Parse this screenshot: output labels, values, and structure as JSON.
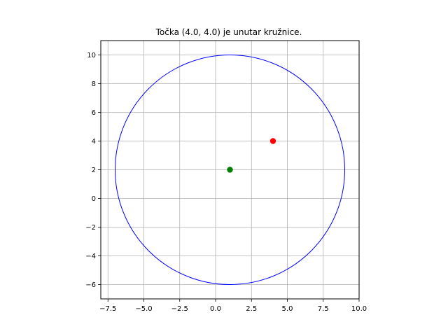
{
  "chart_data": {
    "type": "scatter",
    "title": "Točka (4.0, 4.0) je unutar kružnice.",
    "xlabel": "",
    "ylabel": "",
    "xlim": [
      -8.0,
      10.0
    ],
    "ylim": [
      -7.0,
      11.0
    ],
    "aspect": "equal",
    "grid": true,
    "x_ticks": [
      -7.5,
      -5.0,
      -2.5,
      0.0,
      2.5,
      5.0,
      7.5,
      10.0
    ],
    "x_tick_labels": [
      "−7.5",
      "−5.0",
      "−2.5",
      "0.0",
      "2.5",
      "5.0",
      "7.5",
      "10.0"
    ],
    "y_ticks": [
      -6,
      -4,
      -2,
      0,
      2,
      4,
      6,
      8,
      10
    ],
    "y_tick_labels": [
      "−6",
      "−4",
      "−2",
      "0",
      "2",
      "4",
      "6",
      "8",
      "10"
    ],
    "circle": {
      "center": [
        1.0,
        2.0
      ],
      "radius": 8.0,
      "color": "#0000ff"
    },
    "points": [
      {
        "x": 1.0,
        "y": 2.0,
        "color": "#008000"
      },
      {
        "x": 4.0,
        "y": 4.0,
        "color": "#ff0000"
      }
    ]
  }
}
